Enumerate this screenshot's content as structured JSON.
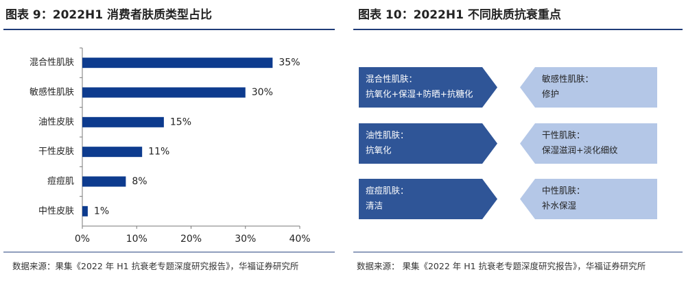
{
  "chart_data": {
    "type": "bar",
    "orientation": "horizontal",
    "title": "图表 9：2022H1 消费者肤质类型占比",
    "categories": [
      "混合性肌肤",
      "敏感性肌肤",
      "油性皮肤",
      "干性皮肤",
      "痘痘肌",
      "中性皮肤"
    ],
    "values": [
      35,
      30,
      15,
      11,
      8,
      1
    ],
    "value_labels": [
      "35%",
      "30%",
      "15%",
      "11%",
      "8%",
      "1%"
    ],
    "color": "#0d3b8e",
    "xlim": [
      0,
      40
    ],
    "xticks": [
      {
        "value": 0,
        "label": "0%"
      },
      {
        "value": 10,
        "label": "10%"
      },
      {
        "value": 20,
        "label": "20%"
      },
      {
        "value": 30,
        "label": "30%"
      },
      {
        "value": 40,
        "label": "40%"
      }
    ],
    "source": "数据来源：果集《2022 年 H1 抗衰老专题深度研究报告》，华福证券研究所"
  },
  "diagram": {
    "title": "图表 10：2022H1 不同肤质抗衰重点",
    "boxes": [
      {
        "title": "混合性肌肤：",
        "text": "抗氧化+保湿+防晒+抗糖化"
      },
      {
        "title": "敏感性肌肤：",
        "text": "修护"
      },
      {
        "title": "油性肌肤：",
        "text": "抗氧化"
      },
      {
        "title": "干性肌肤：",
        "text": "保湿滋润+淡化细纹"
      },
      {
        "title": "痘痘肌肤：",
        "text": "清洁"
      },
      {
        "title": "中性肌肤：",
        "text": "补水保湿"
      }
    ],
    "source": "数据来源：  果集《2022 年 H1 抗衰老专题深度研究报告》，华福证券研究所"
  }
}
